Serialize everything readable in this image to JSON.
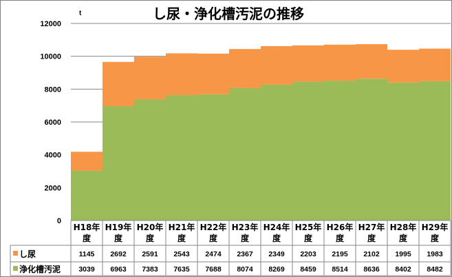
{
  "chart_data": {
    "type": "bar",
    "stacked": true,
    "title": "し尿・浄化槽汚泥の推移",
    "unit_label": "t",
    "ylim": [
      0,
      12000
    ],
    "yticks": [
      0,
      2000,
      4000,
      6000,
      8000,
      10000,
      12000
    ],
    "grid": true,
    "legend": "data-table",
    "categories": [
      [
        "H18年",
        "度"
      ],
      [
        "H19年",
        "度"
      ],
      [
        "H20年",
        "度"
      ],
      [
        "H21年",
        "度"
      ],
      [
        "H22年",
        "度"
      ],
      [
        "H23年",
        "度"
      ],
      [
        "H24年",
        "度"
      ],
      [
        "H25年",
        "度"
      ],
      [
        "H26年",
        "度"
      ],
      [
        "H27年",
        "度"
      ],
      [
        "H28年",
        "度"
      ],
      [
        "H29年",
        "度"
      ]
    ],
    "series": [
      {
        "name": "浄化槽汚泥",
        "color": "#9bbb59",
        "values": [
          3039,
          6963,
          7383,
          7635,
          7688,
          8074,
          8269,
          8459,
          8514,
          8636,
          8402,
          8482
        ]
      },
      {
        "name": "し尿",
        "color": "#f79646",
        "values": [
          1145,
          2692,
          2591,
          2543,
          2474,
          2367,
          2349,
          2203,
          2195,
          2102,
          1995,
          1983
        ]
      }
    ],
    "table_row_order": [
      1,
      0
    ]
  }
}
